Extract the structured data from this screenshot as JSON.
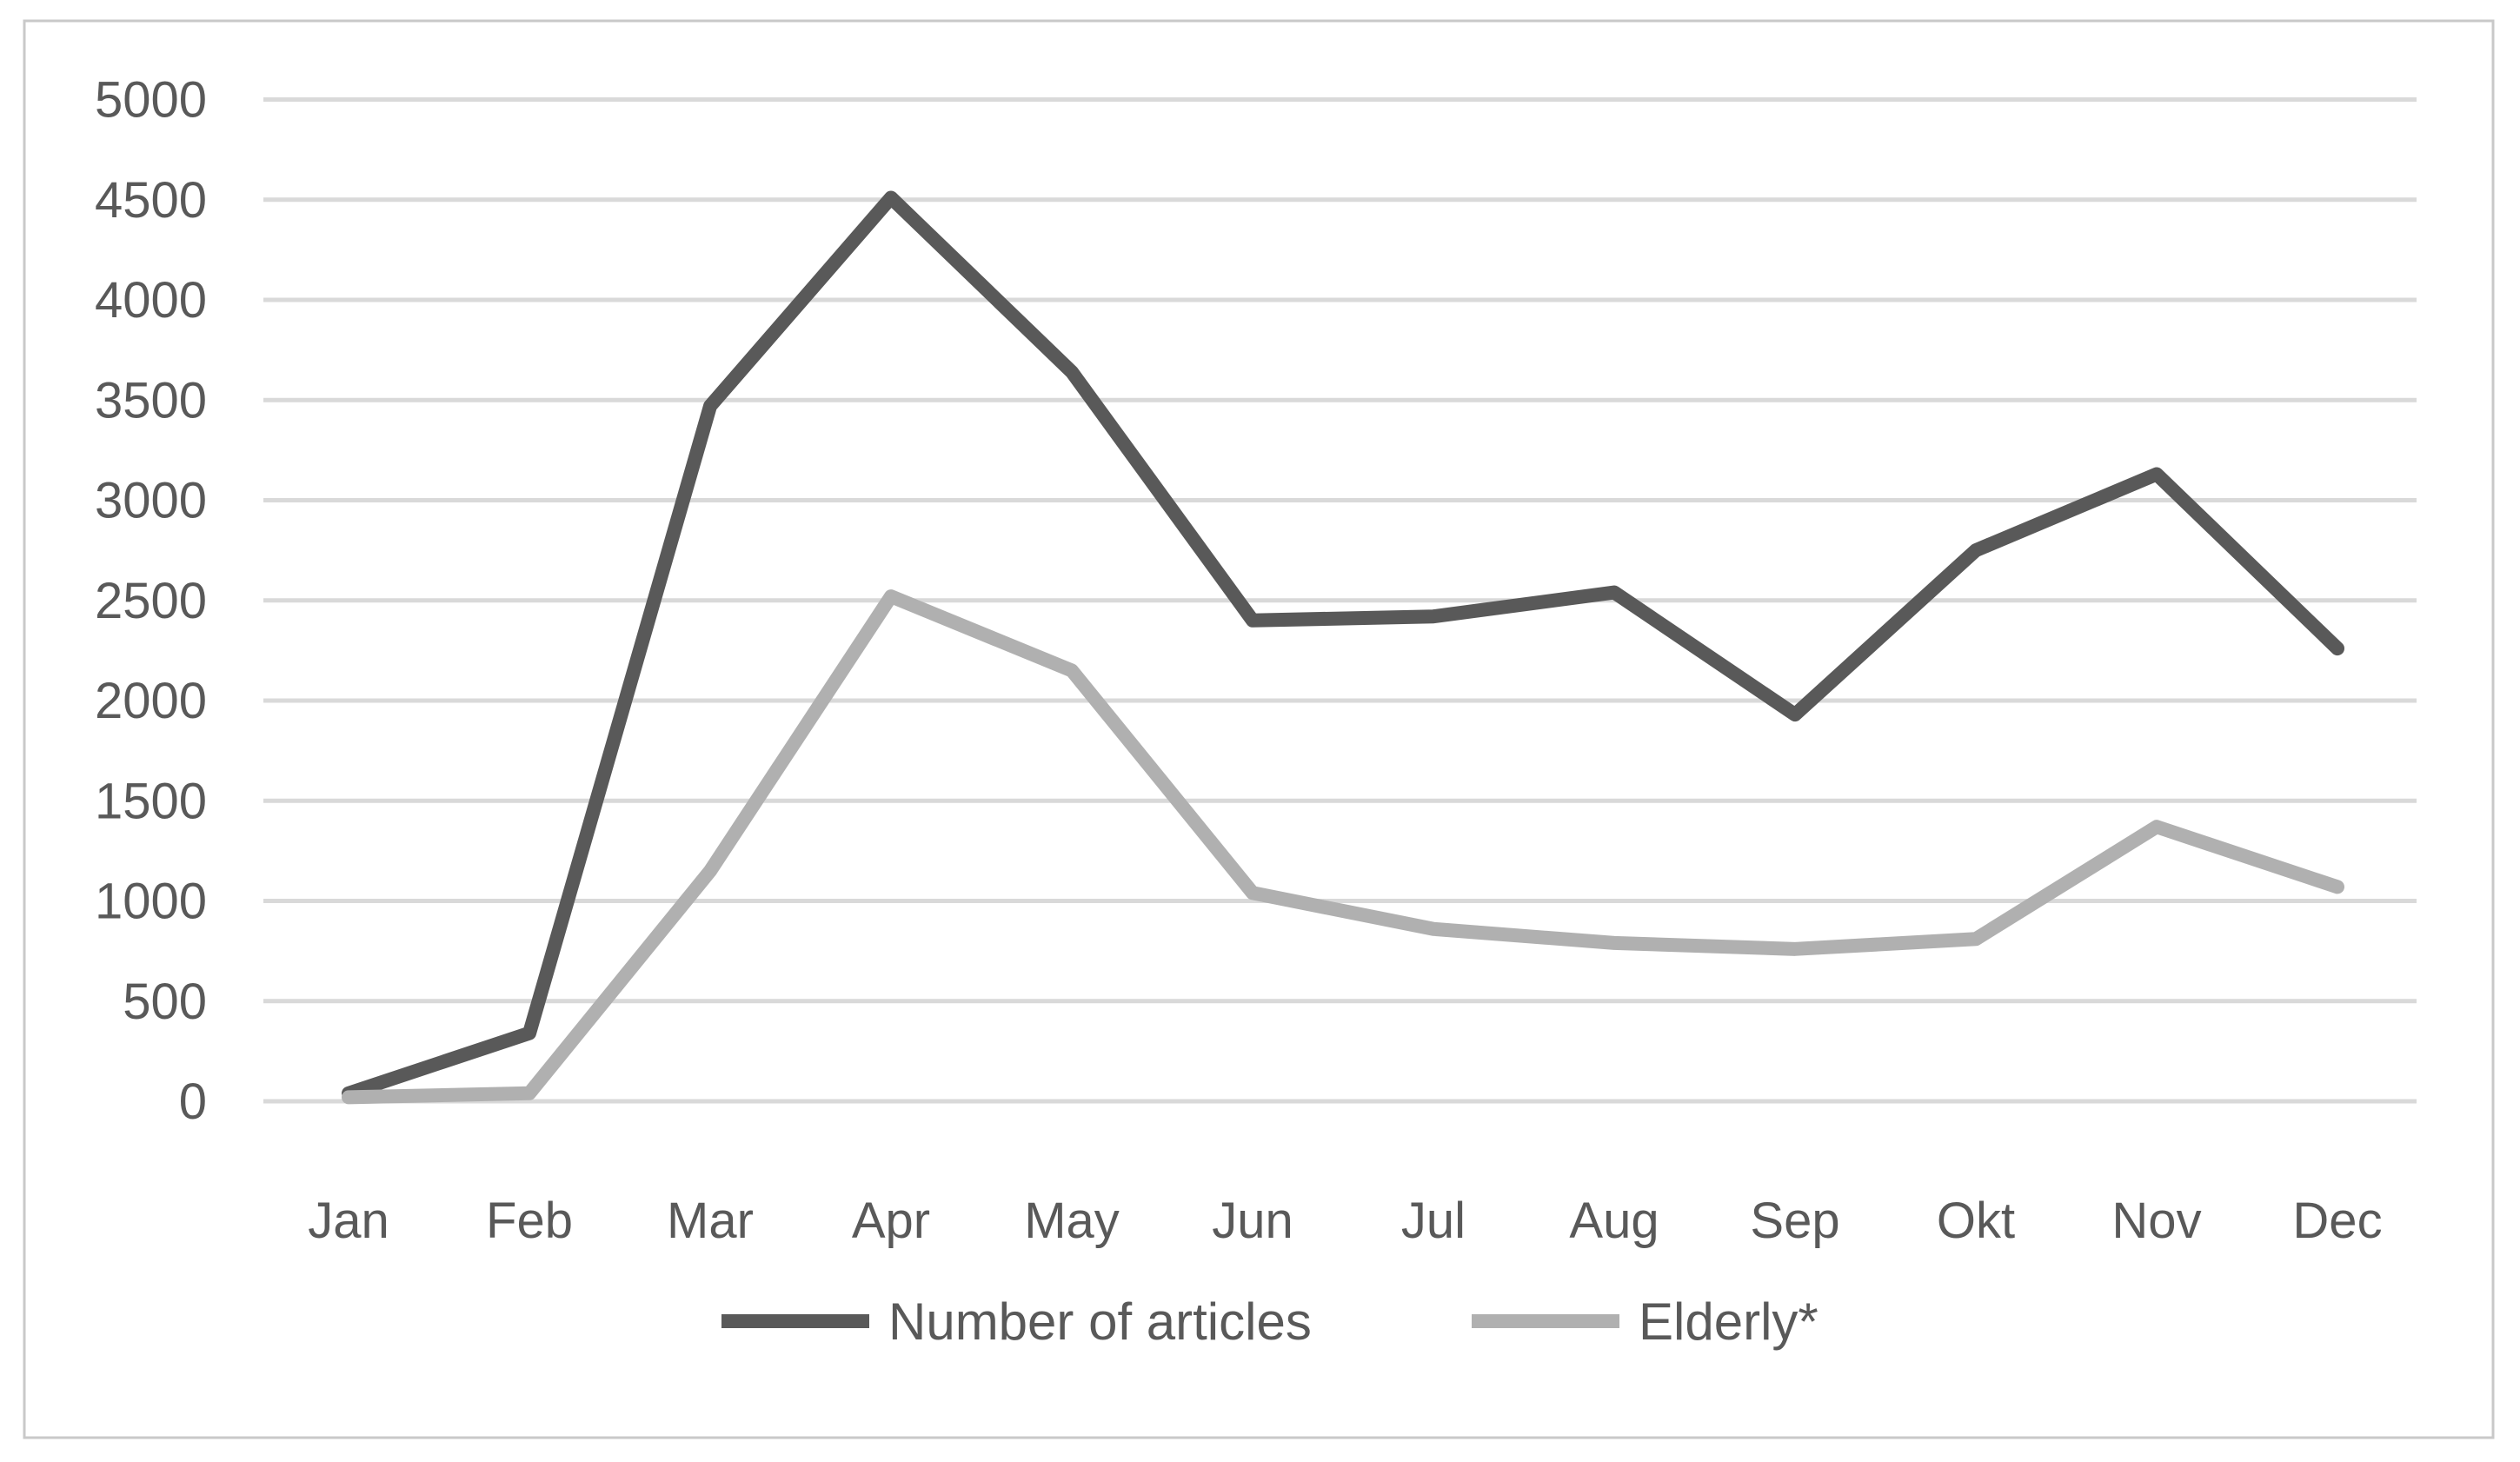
{
  "chart_data": {
    "type": "line",
    "title": "",
    "xlabel": "",
    "ylabel": "",
    "categories": [
      "Jan",
      "Feb",
      "Mar",
      "Apr",
      "May",
      "Jun",
      "Jul",
      "Aug",
      "Sep",
      "Okt",
      "Nov",
      "Dec"
    ],
    "series": [
      {
        "name": "Number of articles",
        "color": "#595959",
        "values": [
          40,
          340,
          3470,
          4510,
          3640,
          2400,
          2420,
          2540,
          1930,
          2750,
          3130,
          2260
        ]
      },
      {
        "name": "Elderly*",
        "color": "#b0b0b0",
        "values": [
          20,
          40,
          1150,
          2520,
          2150,
          1040,
          860,
          790,
          760,
          810,
          1370,
          1070
        ]
      }
    ],
    "ylim": [
      0,
      5000
    ],
    "ytick_step": 500,
    "yticks": [
      "0",
      "500",
      "1000",
      "1500",
      "2000",
      "2500",
      "3000",
      "3500",
      "4000",
      "4500",
      "5000"
    ],
    "grid": true,
    "legend_position": "bottom"
  },
  "colors": {
    "gridline": "#d9d9d9",
    "border": "#c9c9c9",
    "axis_text": "#595959",
    "background": "#ffffff",
    "series_dark": "#595959",
    "series_light": "#b0b0b0"
  }
}
